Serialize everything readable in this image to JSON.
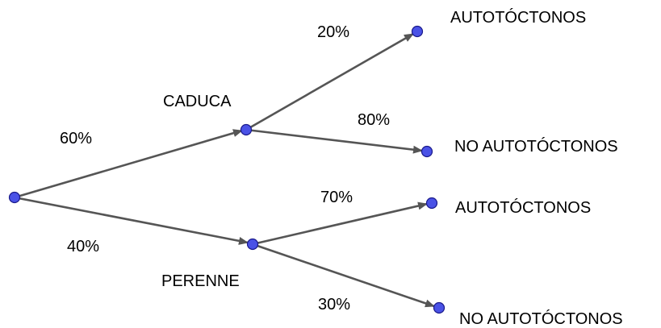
{
  "colors": {
    "edge": "#555555",
    "node": "#4a52e6",
    "node_stroke": "#1a1a8a",
    "text": "#000000"
  },
  "branches": {
    "root_to_caduca": "60%",
    "root_to_perenne": "40%",
    "caduca_to_autoctonos": "20%",
    "caduca_to_no_autoctonos": "80%",
    "perenne_to_autoctonos": "70%",
    "perenne_to_no_autoctonos": "30%"
  },
  "nodes": {
    "caduca": "CADUCA",
    "perenne": "PERENNE",
    "caduca_autoctonos": "AUTOTÓCTONOS",
    "caduca_no_autoctonos": "NO AUTOTÓCTONOS",
    "perenne_autoctonos": "AUTOTÓCTONOS",
    "perenne_no_autoctonos": "NO AUTOTÓCTONOS"
  }
}
